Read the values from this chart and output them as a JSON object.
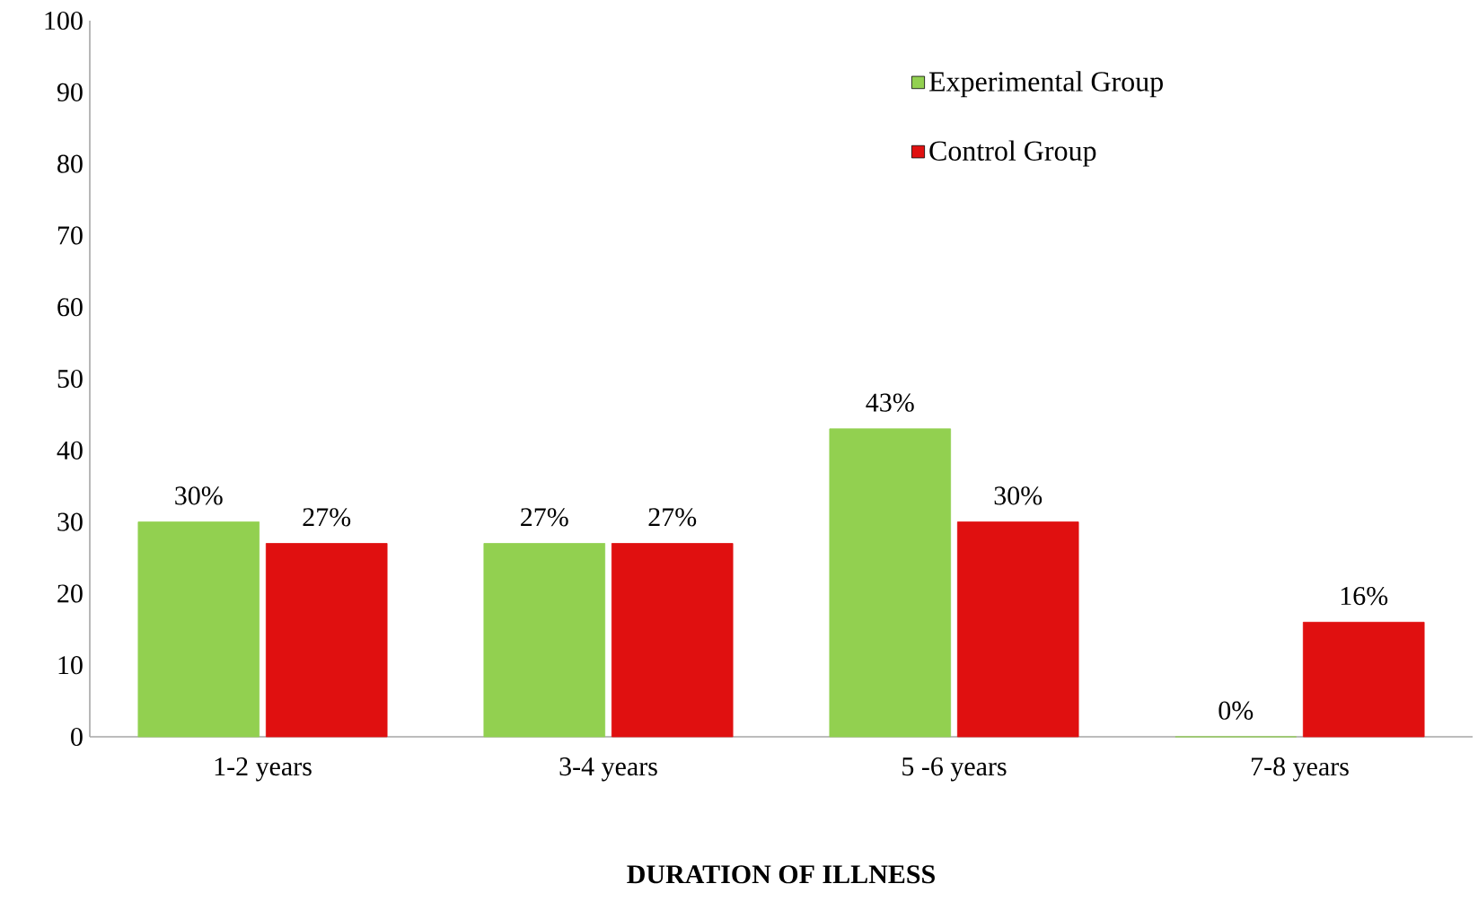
{
  "chart_data": {
    "type": "bar",
    "xlabel": "**DURATION OF ILLNESS**",
    "categories": [
      "1-2 years",
      "3-4 years",
      "5 -6 years",
      "7-8 years"
    ],
    "series": [
      {
        "name": "Experimental Group",
        "color": "#92d050",
        "values": [
          30,
          27,
          43,
          0
        ],
        "value_labels": [
          "30%",
          "27%",
          "43%",
          "0%"
        ]
      },
      {
        "name": "Control Group",
        "color": "#e01010",
        "values": [
          27,
          27,
          30,
          16
        ],
        "value_labels": [
          "27%",
          "27%",
          "30%",
          "16%"
        ]
      }
    ],
    "ylim": [
      0,
      100
    ],
    "yticks": [
      0,
      10,
      20,
      30,
      40,
      50,
      60,
      70,
      80,
      90,
      100
    ],
    "grid": false,
    "legend": "top right"
  }
}
